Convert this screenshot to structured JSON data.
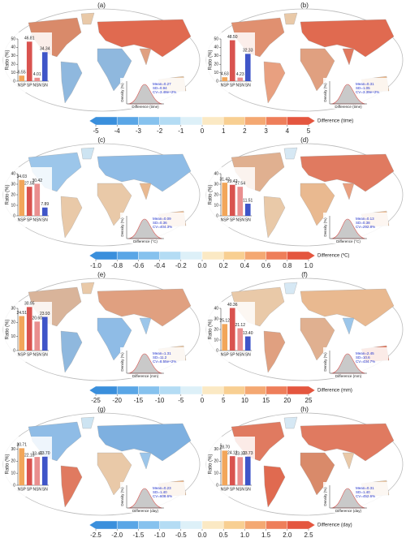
{
  "chart_data": [
    {
      "type": "bar",
      "label": "(a)",
      "y_label": "Ratio (%)",
      "categories": [
        "NSP",
        "SP",
        "NSN",
        "SN"
      ],
      "values": [
        6.55,
        46.81,
        4.01,
        34.34
      ],
      "colors": [
        "#f2a65a",
        "#d9534f",
        "#e98f8f",
        "#3f55c8"
      ],
      "ylim": [
        0,
        50
      ],
      "yticks": [
        0,
        10,
        20,
        30,
        40,
        50
      ],
      "density_y_label": "Density (%)",
      "density_x_label": "Difference (time)",
      "stats": [
        "Mean=0.27",
        "SD=0.94",
        "CV=3.48e+2%"
      ]
    },
    {
      "type": "bar",
      "label": "(b)",
      "y_label": "Ratio (%)",
      "categories": [
        "NSP",
        "SP",
        "NSN",
        "SN"
      ],
      "values": [
        4.63,
        48.5,
        4.23,
        32.33
      ],
      "value_labels": [
        "4.63",
        "48.50",
        "4.23",
        "32.33"
      ],
      "colors": [
        "#f2a65a",
        "#d9534f",
        "#e98f8f",
        "#3f55c8"
      ],
      "ylim": [
        0,
        50
      ],
      "yticks": [
        0,
        10,
        20,
        30,
        40,
        50
      ],
      "density_y_label": "Density (%)",
      "density_x_label": "Difference (time)",
      "stats": [
        "Mean=0.31",
        "SD=1.05",
        "CV=3.39e+2%"
      ]
    },
    {
      "type": "bar",
      "label": "(c)",
      "y_label": "Ratio (%)",
      "categories": [
        "NSP",
        "SP",
        "NSN",
        "SN"
      ],
      "values": [
        34.03,
        27.58,
        30.42,
        7.89
      ],
      "colors": [
        "#f2a65a",
        "#d9534f",
        "#e98f8f",
        "#3f55c8"
      ],
      "ylim": [
        0,
        40
      ],
      "yticks": [
        0,
        10,
        20,
        30,
        40
      ],
      "density_y_label": "Density (%)",
      "density_x_label": "Difference (°C)",
      "stats": [
        "Mean=0.09",
        "SD=0.36",
        "CV=404.3%"
      ]
    },
    {
      "type": "bar",
      "label": "(d)",
      "y_label": "Ratio (%)",
      "categories": [
        "NSP",
        "SP",
        "NSN",
        "SN"
      ],
      "values": [
        31.42,
        29.42,
        27.54,
        11.51
      ],
      "colors": [
        "#f2a65a",
        "#d9534f",
        "#e98f8f",
        "#3f55c8"
      ],
      "ylim": [
        0,
        40
      ],
      "yticks": [
        0,
        10,
        20,
        30,
        40
      ],
      "density_y_label": "Density (%)",
      "density_x_label": "Difference (°C)",
      "stats": [
        "Mean=0.13",
        "SD=0.38",
        "CV=292.8%"
      ]
    },
    {
      "type": "bar",
      "label": "(e)",
      "y_label": "Ratio (%)",
      "categories": [
        "NSP",
        "SP",
        "NSN",
        "SN"
      ],
      "values": [
        24.51,
        30.95,
        20.6,
        23.93
      ],
      "value_labels": [
        "24.51",
        "30.95",
        "20.60",
        "23.93"
      ],
      "colors": [
        "#f2a65a",
        "#d9534f",
        "#e98f8f",
        "#3f55c8"
      ],
      "ylim": [
        0,
        30
      ],
      "yticks": [
        0,
        10,
        20,
        30
      ],
      "density_y_label": "Density (%)",
      "density_x_label": "Difference (mm)",
      "stats": [
        "Mean=1.31",
        "SD=11.2",
        "CV=8.55e+2%"
      ]
    },
    {
      "type": "bar",
      "label": "(f)",
      "y_label": "Ratio (%)",
      "categories": [
        "NSP",
        "SP",
        "NSN",
        "SN"
      ],
      "values": [
        25.12,
        40.36,
        21.12,
        13.4
      ],
      "value_labels": [
        "25.12",
        "40.36",
        "21.12",
        "13.40"
      ],
      "colors": [
        "#f2a65a",
        "#d9534f",
        "#e98f8f",
        "#3f55c8"
      ],
      "ylim": [
        0,
        40
      ],
      "yticks": [
        0,
        10,
        20,
        30,
        40
      ],
      "density_y_label": "Density (%)",
      "density_x_label": "Difference (mm)",
      "stats": [
        "Mean=2.45",
        "SD=10.6",
        "CV=434.7%"
      ]
    },
    {
      "type": "bar",
      "label": "(g)",
      "y_label": "Ratio (%)",
      "categories": [
        "NSP",
        "SP",
        "NSN",
        "SN"
      ],
      "values": [
        30.71,
        22.13,
        23.46,
        23.7
      ],
      "value_labels": [
        "30.71",
        "22.13",
        "23.46",
        "23.70"
      ],
      "colors": [
        "#f2a65a",
        "#d9534f",
        "#e98f8f",
        "#3f55c8"
      ],
      "ylim": [
        0,
        35
      ],
      "yticks": [
        0,
        10,
        20,
        30
      ],
      "density_y_label": "Density (%)",
      "density_x_label": "Difference (day)",
      "stats": [
        "Mean=0.23",
        "SD=1.40",
        "CV=608.6%"
      ]
    },
    {
      "type": "bar",
      "label": "(h)",
      "y_label": "Ratio (%)",
      "categories": [
        "NSP",
        "SP",
        "NSN",
        "SN"
      ],
      "values": [
        28.7,
        24.12,
        23.33,
        23.73
      ],
      "value_labels": [
        "28.70",
        "24.12",
        "23.33",
        "23.73"
      ],
      "colors": [
        "#f2a65a",
        "#d9534f",
        "#e98f8f",
        "#3f55c8"
      ],
      "ylim": [
        0,
        35
      ],
      "yticks": [
        0,
        10,
        20,
        30
      ],
      "density_y_label": "Density (%)",
      "density_x_label": "Difference (day)",
      "stats": [
        "Mean=0.31",
        "SD=1.40",
        "CV=452.6%"
      ]
    },
    {
      "type": "colorbar",
      "label": "Difference (time)",
      "xlim": [
        -5,
        5
      ],
      "xticks": [
        -5,
        -4,
        -3,
        -2,
        -1,
        0,
        1,
        2,
        3,
        4,
        5
      ],
      "colors": [
        "#3a8fdc",
        "#5aa6e6",
        "#86c2ee",
        "#b4dcf4",
        "#ddf0f8",
        "#fbe9c4",
        "#f8cf92",
        "#f4a872",
        "#ee7e5a",
        "#e4563f"
      ]
    },
    {
      "type": "colorbar",
      "label": "Difference (ºC)",
      "xlim": [
        -1,
        1
      ],
      "xticks": [
        {
          "value": -1,
          "label": "-1.0"
        },
        -0.8,
        -0.6,
        -0.4,
        -0.2,
        {
          "value": 0,
          "label": "0.0"
        },
        0.2,
        0.4,
        0.6,
        0.8,
        {
          "value": 1,
          "label": "1.0"
        }
      ],
      "colors": [
        "#3a8fdc",
        "#5aa6e6",
        "#86c2ee",
        "#b4dcf4",
        "#ddf0f8",
        "#fbe9c4",
        "#f8cf92",
        "#f4a872",
        "#ee7e5a",
        "#e4563f"
      ]
    },
    {
      "type": "colorbar",
      "label": "Difference (mm)",
      "xlim": [
        -25,
        25
      ],
      "xticks": [
        -25,
        -20,
        -15,
        -10,
        -5,
        0,
        5,
        10,
        15,
        20,
        25
      ],
      "colors": [
        "#3a8fdc",
        "#5aa6e6",
        "#86c2ee",
        "#b4dcf4",
        "#ddf0f8",
        "#fbe9c4",
        "#f8cf92",
        "#f4a872",
        "#ee7e5a",
        "#e4563f"
      ]
    },
    {
      "type": "colorbar",
      "label": "Difference (day)",
      "xlim": [
        -2.5,
        2.5
      ],
      "xticks": [
        -2.5,
        {
          "value": -2,
          "label": "-2.0"
        },
        -1.5,
        {
          "value": -1,
          "label": "-1.0"
        },
        -0.5,
        {
          "value": 0,
          "label": "0.0"
        },
        0.5,
        {
          "value": 1,
          "label": "1.0"
        },
        1.5,
        {
          "value": 2,
          "label": "2.0"
        },
        2.5
      ],
      "colors": [
        "#3a8fdc",
        "#5aa6e6",
        "#86c2ee",
        "#b4dcf4",
        "#ddf0f8",
        "#fbe9c4",
        "#f8cf92",
        "#f4a872",
        "#ee7e5a",
        "#e4563f"
      ]
    }
  ]
}
